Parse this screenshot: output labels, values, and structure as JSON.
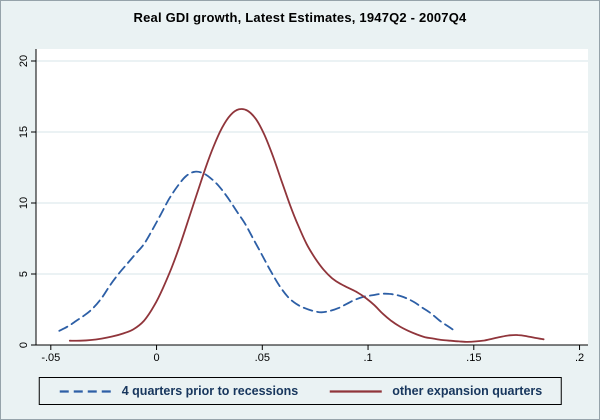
{
  "figure": {
    "background": "#eaf2f3",
    "plot_background": "#ffffff",
    "grid_color": "#d7e6e9",
    "axis_color": "#000000",
    "tick_label_color": "#000000",
    "legend_text_color": "#17365d",
    "legend_border_color": "#000000"
  },
  "chart_data": {
    "type": "line",
    "title": "Real GDI growth, Latest Estimates, 1947Q2 - 2007Q4",
    "xlabel": "",
    "ylabel": "",
    "xlim": [
      -0.057,
      0.204
    ],
    "ylim": [
      0,
      20
    ],
    "x_ticks": [
      -0.05,
      0,
      0.05,
      0.1,
      0.15,
      0.2
    ],
    "x_tick_labels": [
      "-.05",
      "0",
      ".05",
      ".1",
      ".15",
      ".2"
    ],
    "y_ticks": [
      0,
      5,
      10,
      15,
      20
    ],
    "y_tick_labels": [
      "0",
      "5",
      "10",
      "15",
      "20"
    ],
    "grid": true,
    "legend_position": "bottom",
    "series": [
      {
        "name": "4 quarters prior to recessions",
        "style": "dashed",
        "color": "#2d5fa6",
        "points": [
          [
            -0.046,
            1.0
          ],
          [
            -0.042,
            1.3
          ],
          [
            -0.038,
            1.7
          ],
          [
            -0.034,
            2.1
          ],
          [
            -0.03,
            2.6
          ],
          [
            -0.026,
            3.3
          ],
          [
            -0.022,
            4.2
          ],
          [
            -0.018,
            5.0
          ],
          [
            -0.014,
            5.7
          ],
          [
            -0.01,
            6.4
          ],
          [
            -0.006,
            7.1
          ],
          [
            -0.002,
            8.1
          ],
          [
            0.002,
            9.2
          ],
          [
            0.006,
            10.3
          ],
          [
            0.01,
            11.2
          ],
          [
            0.014,
            11.9
          ],
          [
            0.018,
            12.2
          ],
          [
            0.022,
            12.1
          ],
          [
            0.026,
            11.7
          ],
          [
            0.03,
            11.1
          ],
          [
            0.034,
            10.3
          ],
          [
            0.038,
            9.4
          ],
          [
            0.042,
            8.5
          ],
          [
            0.046,
            7.4
          ],
          [
            0.05,
            6.3
          ],
          [
            0.054,
            5.2
          ],
          [
            0.058,
            4.2
          ],
          [
            0.062,
            3.4
          ],
          [
            0.066,
            2.9
          ],
          [
            0.07,
            2.6
          ],
          [
            0.074,
            2.4
          ],
          [
            0.078,
            2.3
          ],
          [
            0.082,
            2.4
          ],
          [
            0.086,
            2.6
          ],
          [
            0.09,
            2.9
          ],
          [
            0.094,
            3.2
          ],
          [
            0.098,
            3.4
          ],
          [
            0.102,
            3.5
          ],
          [
            0.106,
            3.6
          ],
          [
            0.11,
            3.6
          ],
          [
            0.114,
            3.5
          ],
          [
            0.118,
            3.3
          ],
          [
            0.122,
            3.0
          ],
          [
            0.126,
            2.6
          ],
          [
            0.13,
            2.2
          ],
          [
            0.134,
            1.7
          ],
          [
            0.138,
            1.3
          ],
          [
            0.141,
            1.0
          ]
        ]
      },
      {
        "name": "other expansion quarters",
        "style": "solid",
        "color": "#90353b",
        "points": [
          [
            -0.041,
            0.3
          ],
          [
            -0.036,
            0.3
          ],
          [
            -0.031,
            0.35
          ],
          [
            -0.026,
            0.45
          ],
          [
            -0.021,
            0.6
          ],
          [
            -0.016,
            0.8
          ],
          [
            -0.011,
            1.1
          ],
          [
            -0.006,
            1.7
          ],
          [
            -0.001,
            2.8
          ],
          [
            0.003,
            4.0
          ],
          [
            0.007,
            5.4
          ],
          [
            0.011,
            7.0
          ],
          [
            0.015,
            8.8
          ],
          [
            0.019,
            10.6
          ],
          [
            0.023,
            12.4
          ],
          [
            0.027,
            14.0
          ],
          [
            0.031,
            15.3
          ],
          [
            0.035,
            16.2
          ],
          [
            0.039,
            16.6
          ],
          [
            0.043,
            16.5
          ],
          [
            0.047,
            15.9
          ],
          [
            0.051,
            14.8
          ],
          [
            0.055,
            13.3
          ],
          [
            0.059,
            11.6
          ],
          [
            0.063,
            9.9
          ],
          [
            0.067,
            8.4
          ],
          [
            0.071,
            7.1
          ],
          [
            0.075,
            6.1
          ],
          [
            0.079,
            5.3
          ],
          [
            0.083,
            4.7
          ],
          [
            0.087,
            4.3
          ],
          [
            0.091,
            4.0
          ],
          [
            0.095,
            3.7
          ],
          [
            0.099,
            3.3
          ],
          [
            0.103,
            2.8
          ],
          [
            0.107,
            2.2
          ],
          [
            0.111,
            1.7
          ],
          [
            0.115,
            1.3
          ],
          [
            0.119,
            1.0
          ],
          [
            0.123,
            0.75
          ],
          [
            0.127,
            0.55
          ],
          [
            0.131,
            0.45
          ],
          [
            0.135,
            0.35
          ],
          [
            0.139,
            0.3
          ],
          [
            0.143,
            0.25
          ],
          [
            0.147,
            0.22
          ],
          [
            0.151,
            0.25
          ],
          [
            0.155,
            0.32
          ],
          [
            0.159,
            0.45
          ],
          [
            0.163,
            0.58
          ],
          [
            0.167,
            0.68
          ],
          [
            0.171,
            0.7
          ],
          [
            0.175,
            0.62
          ],
          [
            0.179,
            0.5
          ],
          [
            0.183,
            0.4
          ]
        ]
      }
    ]
  }
}
